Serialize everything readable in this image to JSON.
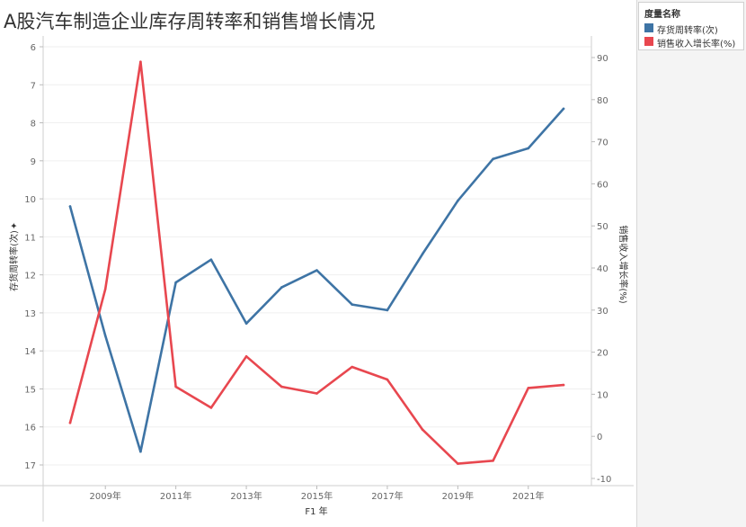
{
  "title": "A股汽车制造企业库存周转率和销售增长情况",
  "legend": {
    "title": "度量名称",
    "items": [
      {
        "label": "存货周转率(次)",
        "color": "#3e74a5"
      },
      {
        "label": "销售收入增长率(%)",
        "color": "#e8474f"
      }
    ]
  },
  "chart_data": {
    "type": "line",
    "x": [
      2008,
      2009,
      2010,
      2011,
      2012,
      2013,
      2014,
      2015,
      2016,
      2017,
      2018,
      2019,
      2020,
      2021,
      2022
    ],
    "x_tick_labels": [
      "2009年",
      "2011年",
      "2013年",
      "2015年",
      "2017年",
      "2019年",
      "2021年"
    ],
    "xlabel": "F1 年",
    "y_left": {
      "label": "存货周转率(次)",
      "range": [
        6,
        17.5
      ],
      "reversed": true,
      "ticks": [
        6,
        7,
        8,
        9,
        10,
        11,
        12,
        13,
        14,
        15,
        16,
        17
      ]
    },
    "y_right": {
      "label": "销售收入增长率(%)",
      "range": [
        -10,
        93
      ],
      "ticks": [
        90,
        80,
        70,
        60,
        50,
        40,
        30,
        20,
        10,
        0,
        -10
      ]
    },
    "series": [
      {
        "name": "存货周转率(次)",
        "axis": "left",
        "color": "#3e74a5",
        "values": [
          10.2,
          13.6,
          16.65,
          12.2,
          11.6,
          13.28,
          12.33,
          11.88,
          12.78,
          12.93,
          11.45,
          10.05,
          8.95,
          8.67,
          7.63
        ]
      },
      {
        "name": "销售收入增长率(%)",
        "axis": "right",
        "color": "#e8474f",
        "values": [
          3.2,
          35.0,
          89.0,
          11.8,
          6.8,
          19.0,
          11.8,
          10.2,
          16.5,
          13.5,
          1.6,
          -6.5,
          -5.8,
          11.5,
          12.2
        ]
      }
    ],
    "grid": true,
    "legend_position": "right"
  }
}
